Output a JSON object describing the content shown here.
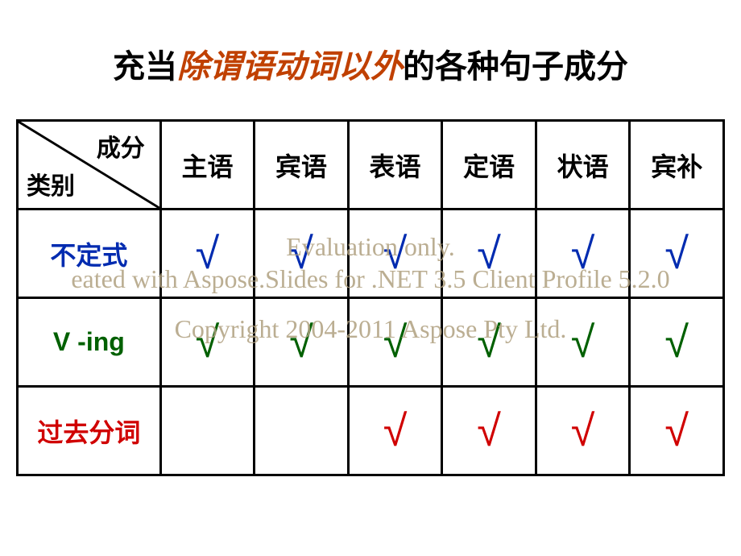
{
  "title": {
    "part1": "充当",
    "part2": "除谓语动词以外",
    "part3": "的各种句子成分"
  },
  "header": {
    "top": "成分",
    "bottom": "类别"
  },
  "columns": [
    "主语",
    "宾语",
    "表语",
    "定语",
    "状语",
    "宾补"
  ],
  "rows": [
    {
      "label": "不定式",
      "label_color": "#002bb0",
      "check_color": "#002bb0",
      "checks": [
        true,
        true,
        true,
        true,
        true,
        true
      ]
    },
    {
      "label": "V -ing",
      "label_html": "<span style='color:#006000'>V</span> <span style='color:#006000'>-ing</span>",
      "label_color": "#006000",
      "check_color": "#006000",
      "checks": [
        true,
        true,
        true,
        true,
        true,
        true
      ]
    },
    {
      "label": "过去分词",
      "label_color": "#d00000",
      "check_color": "#d00000",
      "checks": [
        false,
        false,
        true,
        true,
        true,
        true
      ]
    }
  ],
  "watermark": {
    "line1": "Evaluation only.",
    "line2": "eated with Aspose.Slides for .NET 3.5 Client Profile 5.2.0",
    "line3": "Copyright 2004-2011 Aspose Pty Ltd."
  },
  "styling": {
    "title_fontsize": 40,
    "cell_fontsize": 32,
    "check_fontsize": 54,
    "border_color": "#000000",
    "border_width": 3,
    "background": "#ffffff",
    "watermark_color": "#b0a080",
    "title_accent_color": "#c04000"
  }
}
